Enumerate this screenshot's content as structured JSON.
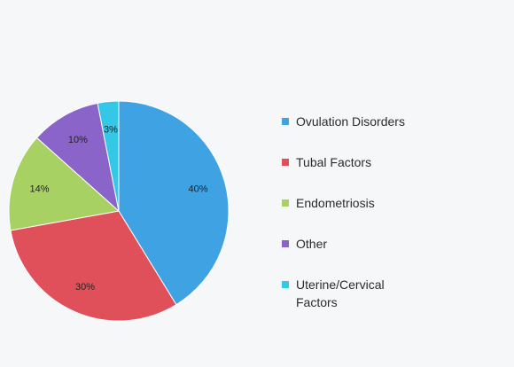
{
  "chart_data": {
    "type": "pie",
    "title": "",
    "slices": [
      {
        "label": "Ovulation Disorders",
        "value": 40,
        "display": "40%",
        "color": "#3fa2e3"
      },
      {
        "label": "Tubal Factors",
        "value": 30,
        "display": "30%",
        "color": "#e0505a"
      },
      {
        "label": "Endometriosis",
        "value": 14,
        "display": "14%",
        "color": "#a8d163"
      },
      {
        "label": "Other",
        "value": 10,
        "display": "10%",
        "color": "#8a64c8"
      },
      {
        "label": "Uterine/Cervical\nFactors",
        "value": 3,
        "display": "3%",
        "color": "#35c7e6"
      }
    ],
    "legend_position": "right"
  }
}
